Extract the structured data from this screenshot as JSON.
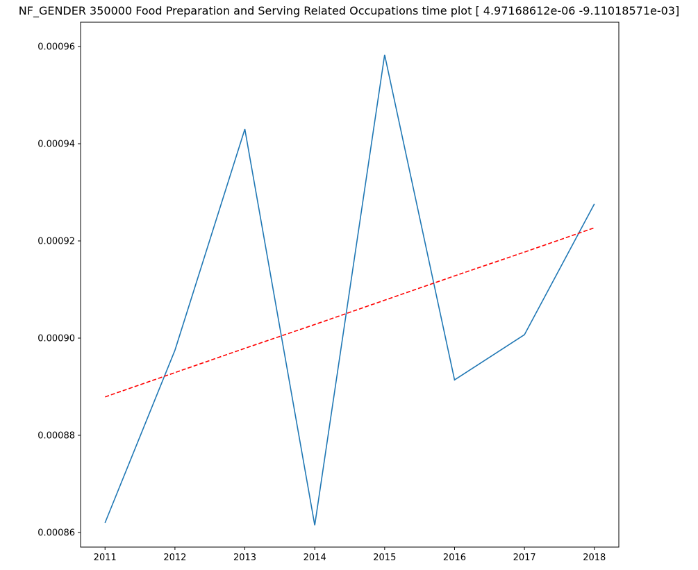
{
  "chart_data": {
    "type": "line",
    "title": "NF_GENDER 350000 Food Preparation and Serving Related Occupations time plot [ 4.97168612e-06 -9.11018571e-03]",
    "xlabel": "",
    "ylabel": "",
    "x": [
      2011,
      2012,
      2013,
      2014,
      2015,
      2016,
      2017,
      2018
    ],
    "xlim": [
      2010.65,
      2018.35
    ],
    "ylim": [
      0.000857,
      0.000965
    ],
    "yticks": [
      "0.00086",
      "0.00088",
      "0.00090",
      "0.00092",
      "0.00094",
      "0.00096"
    ],
    "xticks": [
      "2011",
      "2012",
      "2013",
      "2014",
      "2015",
      "2016",
      "2017",
      "2018"
    ],
    "grid": false,
    "series": [
      {
        "style": "solid",
        "color": "#1f77b4",
        "values": [
          0.000862,
          0.0008975,
          0.000943,
          0.0008615,
          0.0009583,
          0.0008914,
          0.0009007,
          0.0009276
        ]
      },
      {
        "style": "dashed",
        "color": "#ff0000",
        "values": [
          0.0008879,
          0.0008929,
          0.0008979,
          0.0009028,
          0.0009078,
          0.0009128,
          0.0009177,
          0.0009227
        ]
      }
    ]
  }
}
